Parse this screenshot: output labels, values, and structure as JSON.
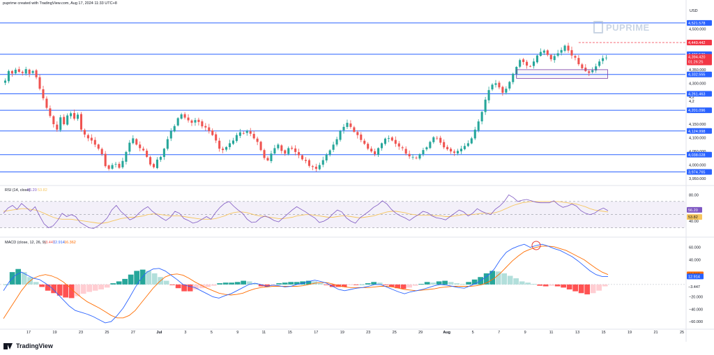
{
  "header": {
    "credit": "puprime created with TradingView.com, Aug 17, 2024 11:33 UTC+8"
  },
  "watermark": {
    "text": "PUPRIME"
  },
  "footer": {
    "logo_text": "TradingView"
  },
  "price_axis": {
    "currency": "USD",
    "min": 3930,
    "max": 4580,
    "ticks": [
      "4,500.000",
      "4,350.000",
      "4,300.000",
      "4,150.000",
      "4,100.000",
      "4,050.000",
      "4,000.000",
      "3,950.000"
    ]
  },
  "horizontal_levels": [
    {
      "price": 4521.578,
      "label": "4,521.578"
    },
    {
      "price": 4406.539,
      "label": "4,406.539"
    },
    {
      "price": 4332.555,
      "label": "4,332.555"
    },
    {
      "price": 4261.463,
      "label": "4,261.463"
    },
    {
      "price": 4201.096,
      "label": "4,201.096"
    },
    {
      "price": 4124.998,
      "label": "4,124.998"
    },
    {
      "price": 4038.028,
      "label": "4,038.028"
    },
    {
      "price": 3974.765,
      "label": "3,974.765"
    }
  ],
  "markers": {
    "high": {
      "price": 4449.442,
      "label": "4,449.442"
    },
    "last": {
      "price": 4394.42,
      "label": "4,394.420",
      "countdown": "01:26:25"
    },
    "partial_tick_1": "4,2",
    "partial_tick_2": "4,2"
  },
  "colors": {
    "up": "#26a69a",
    "down": "#ef5350",
    "level": "#2962ff",
    "high": "#f23645",
    "rsi": "#7e57c2",
    "rsi_ma": "#f6c55d",
    "macd": "#2962ff",
    "signal": "#ff6d00",
    "hist_up_strong": "#26a69a",
    "hist_up_weak": "#b2dfdb",
    "hist_down_strong": "#ff5252",
    "hist_down_weak": "#ffcdd2",
    "rect": "#7b3fa6",
    "circle": "#e53935"
  },
  "time_axis": {
    "labels": [
      "17",
      "19",
      "23",
      "25",
      "27",
      "Jul",
      "3",
      "5",
      "9",
      "11",
      "15",
      "17",
      "19",
      "23",
      "25",
      "29",
      "Aug",
      "5",
      "7",
      "9",
      "11",
      "13",
      "15",
      "19",
      "21",
      "25"
    ],
    "bold": [
      "Jul",
      "Aug"
    ]
  },
  "chart_data": [
    {
      "type": "candlestick",
      "title": "",
      "ylabel": "USD",
      "ylim": [
        3930,
        4580
      ],
      "candle_path": [
        4310,
        4345,
        4336,
        4350,
        4342,
        4338,
        4352,
        4335,
        4345,
        4322,
        4280,
        4245,
        4210,
        4180,
        4150,
        4130,
        4175,
        4150,
        4182,
        4190,
        4170,
        4185,
        4130,
        4112,
        4098,
        4090,
        4075,
        4060,
        4040,
        3996,
        3986,
        4000,
        4004,
        3990,
        4015,
        4048,
        4082,
        4098,
        4075,
        4062,
        4054,
        4030,
        4002,
        3992,
        4020,
        4030,
        4060,
        4095,
        4125,
        4143,
        4172,
        4186,
        4174,
        4164,
        4155,
        4165,
        4158,
        4142,
        4138,
        4125,
        4110,
        4090,
        4060,
        4055,
        4066,
        4080,
        4090,
        4110,
        4120,
        4117,
        4125,
        4115,
        4098,
        4085,
        4055,
        4026,
        4017,
        4042,
        4062,
        4075,
        4052,
        4042,
        4062,
        4060,
        4048,
        4036,
        4021,
        4015,
        3997,
        3993,
        3986,
        4000,
        4018,
        4038,
        4054,
        4075,
        4095,
        4125,
        4140,
        4155,
        4140,
        4122,
        4110,
        4092,
        4078,
        4060,
        4050,
        4040,
        4062,
        4080,
        4097,
        4099,
        4090,
        4078,
        4068,
        4062,
        4042,
        4032,
        4030,
        4025,
        4040,
        4055,
        4065,
        4085,
        4102,
        4098,
        4082,
        4065,
        4058,
        4050,
        4045,
        4052,
        4060,
        4070,
        4080,
        4098,
        4130,
        4160,
        4195,
        4240,
        4275,
        4295,
        4300,
        4285,
        4265,
        4280,
        4305,
        4335,
        4360,
        4385,
        4378,
        4365,
        4362,
        4380,
        4402,
        4415,
        4420,
        4404,
        4388,
        4400,
        4410,
        4422,
        4438,
        4420,
        4402,
        4394,
        4370,
        4355,
        4345,
        4338,
        4348,
        4362,
        4380,
        4392,
        4394
      ]
    },
    {
      "type": "line",
      "title": "RSI (14, close)",
      "params": "14, close",
      "ylim": [
        20,
        90
      ],
      "ticks": [
        "80.00",
        "40.00"
      ],
      "band": [
        30,
        70
      ],
      "series": [
        {
          "name": "RSI",
          "last": "56.20",
          "values": [
            52,
            60,
            64,
            58,
            67,
            61,
            55,
            62,
            48,
            36,
            30,
            33,
            41,
            52,
            47,
            50,
            47,
            38,
            34,
            30,
            29,
            33,
            38,
            45,
            57,
            64,
            55,
            49,
            42,
            45,
            52,
            58,
            62,
            55,
            50,
            45,
            41,
            46,
            55,
            52,
            44,
            41,
            37,
            39,
            43,
            47,
            43,
            53,
            61,
            67,
            70,
            63,
            57,
            52,
            43,
            38,
            39,
            45,
            48,
            45,
            41,
            39,
            45,
            51,
            57,
            62,
            58,
            54,
            49,
            45,
            38,
            40,
            44,
            51,
            57,
            54,
            45,
            40,
            37,
            45,
            50,
            55,
            61,
            65,
            71,
            66,
            58,
            52,
            48,
            45,
            41,
            46,
            50,
            55,
            53,
            48,
            45,
            44,
            42,
            47,
            52,
            57,
            54,
            48,
            52,
            59,
            55,
            52,
            50,
            58,
            63,
            70,
            80,
            76,
            70,
            72,
            73,
            71,
            69,
            68,
            68,
            68,
            71,
            65,
            61,
            63,
            66,
            63,
            56,
            52,
            50,
            52,
            57,
            60,
            56
          ]
        },
        {
          "name": "RSI-based MA",
          "last": "53.82",
          "values": [
            55,
            56,
            57,
            58,
            59,
            59,
            58,
            57,
            55,
            52,
            49,
            46,
            44,
            43,
            43,
            43,
            42,
            41,
            40,
            39,
            38,
            37,
            37,
            38,
            40,
            42,
            44,
            45,
            46,
            46,
            47,
            48,
            50,
            51,
            51,
            50,
            49,
            48,
            48,
            48,
            47,
            46,
            45,
            44,
            43,
            43,
            43,
            44,
            46,
            48,
            51,
            53,
            54,
            54,
            53,
            51,
            49,
            48,
            47,
            46,
            45,
            44,
            44,
            45,
            46,
            48,
            49,
            50,
            50,
            49,
            48,
            47,
            46,
            46,
            47,
            48,
            48,
            47,
            46,
            45,
            46,
            47,
            48,
            50,
            52,
            54,
            55,
            55,
            54,
            53,
            51,
            50,
            49,
            49,
            49,
            49,
            48,
            48,
            47,
            47,
            48,
            49,
            50,
            50,
            50,
            51,
            52,
            52,
            52,
            53,
            55,
            58,
            61,
            64,
            66,
            68,
            69,
            70,
            70,
            70,
            70,
            70,
            70,
            70,
            69,
            68,
            67,
            66,
            64,
            62,
            59,
            57,
            56,
            55,
            54
          ]
        }
      ]
    },
    {
      "type": "line",
      "title": "MACD (close, 12, 26, 9)",
      "params": "close, 12, 26, 9",
      "ylim": [
        -70,
        72
      ],
      "ticks": [
        "60.000",
        "40.000",
        "−20.000",
        "−40.000",
        "−60.000"
      ],
      "series": [
        {
          "name": "MACD",
          "last": "12.914",
          "values": [
            -10,
            5,
            15,
            20,
            15,
            10,
            8,
            2,
            -5,
            -15,
            -25,
            -35,
            -42,
            -45,
            -48,
            -52,
            -57,
            -62,
            -60,
            -50,
            -38,
            -22,
            -5,
            10,
            20,
            25,
            26,
            22,
            15,
            8,
            0,
            -3,
            -5,
            -10,
            -15,
            -20,
            -22,
            -18,
            -15,
            -10,
            -5,
            0,
            2,
            0,
            -3,
            -1,
            -2,
            -4,
            -3,
            0,
            2,
            5,
            7,
            5,
            2,
            -3,
            -8,
            -10,
            -8,
            -6,
            -5,
            -3,
            0,
            0,
            -4,
            -8,
            -12,
            -15,
            -12,
            -10,
            -8,
            -5,
            -2,
            0,
            -1,
            -3,
            -5,
            -6,
            -2,
            2,
            8,
            15,
            25,
            40,
            52,
            58,
            62,
            65,
            60,
            63,
            65,
            62,
            58,
            55,
            50,
            45,
            38,
            30,
            22,
            16,
            13,
            13
          ]
        },
        {
          "name": "Signal",
          "last": "16.362",
          "values": [
            -55,
            -40,
            -25,
            -10,
            2,
            10,
            14,
            16,
            14,
            10,
            4,
            -4,
            -13,
            -21,
            -28,
            -33,
            -38,
            -44,
            -50,
            -54,
            -54,
            -50,
            -42,
            -30,
            -18,
            -6,
            4,
            12,
            16,
            17,
            15,
            10,
            4,
            -1,
            -6,
            -10,
            -14,
            -16,
            -17,
            -16,
            -14,
            -10,
            -7,
            -5,
            -4,
            -3,
            -3,
            -3,
            -3,
            -3,
            -2,
            0,
            2,
            3,
            3,
            1,
            -2,
            -4,
            -5,
            -5,
            -5,
            -5,
            -4,
            -3,
            -3,
            -4,
            -6,
            -8,
            -9,
            -10,
            -9,
            -8,
            -7,
            -5,
            -4,
            -3,
            -3,
            -3,
            -3,
            -2,
            0,
            4,
            10,
            18,
            28,
            38,
            46,
            53,
            57,
            60,
            62,
            62,
            61,
            58,
            55,
            50,
            45,
            40,
            33,
            26,
            20,
            16
          ]
        },
        {
          "name": "Histogram",
          "last": "−3.447",
          "values": [
            0,
            20,
            25,
            20,
            12,
            4,
            -4,
            -10,
            -14,
            -18,
            -21,
            -22,
            -19,
            -15,
            -12,
            -10,
            -8,
            -5,
            2,
            5,
            9,
            16,
            22,
            24,
            22,
            18,
            12,
            6,
            -1,
            -6,
            -11,
            -11,
            -8,
            -6,
            -4,
            -2,
            2,
            3,
            3,
            4,
            6,
            5,
            2,
            -3,
            -4,
            -2,
            2,
            3,
            4,
            4,
            5,
            6,
            5,
            2,
            -1,
            -4,
            -4,
            -4,
            -1,
            -1,
            0,
            2,
            4,
            3,
            -1,
            -4,
            -6,
            -7,
            -5,
            -2,
            1,
            4,
            3,
            5,
            6,
            4,
            2,
            1,
            4,
            8,
            12,
            18,
            22,
            21,
            18,
            14,
            10,
            5,
            3,
            1,
            -2,
            -3,
            -2,
            -3,
            -5,
            -8,
            -11,
            -14,
            -16,
            -14,
            -10,
            -3
          ]
        }
      ]
    }
  ]
}
